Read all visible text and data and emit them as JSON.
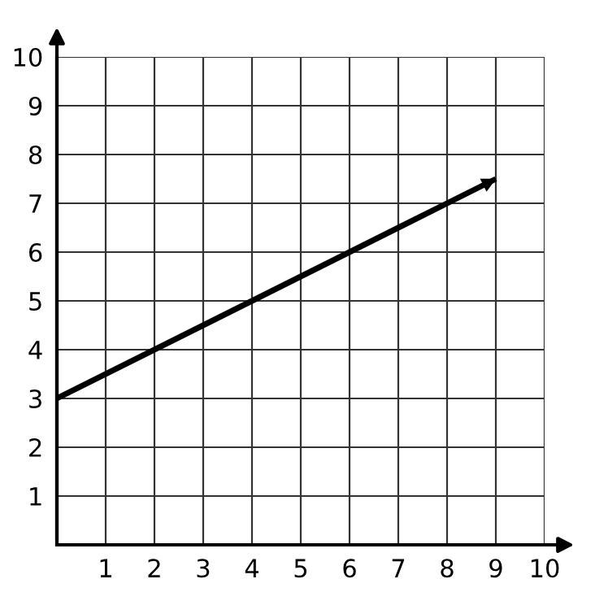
{
  "chart_data": {
    "type": "line",
    "x": [
      0,
      9
    ],
    "series": [
      {
        "color": "#000000",
        "values": [
          3,
          7.5
        ]
      }
    ],
    "xlim": [
      0,
      10
    ],
    "ylim": [
      0,
      10
    ],
    "xticks": [
      1,
      2,
      3,
      4,
      5,
      6,
      7,
      8,
      9,
      10
    ],
    "yticks": [
      1,
      2,
      3,
      4,
      5,
      6,
      7,
      8,
      9,
      10
    ],
    "grid": true,
    "marker": "none",
    "line_style": "solid"
  }
}
